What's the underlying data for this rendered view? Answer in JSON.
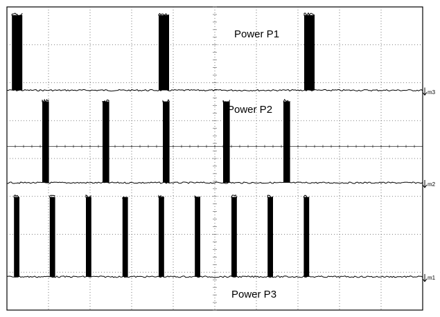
{
  "chart_data": {
    "type": "line",
    "title": "",
    "xlabel": "",
    "ylabel": "",
    "grid": true,
    "grid_divisions": {
      "x": 10,
      "y": 8
    },
    "series": [
      {
        "name": "Power P1",
        "marker": "m3",
        "pulse_starts": [
          0.12,
          3.65,
          7.15
        ],
        "pulse_width": 0.25,
        "amplitude": 1.0
      },
      {
        "name": "Power P2",
        "marker": "m2",
        "pulse_starts": [
          0.85,
          2.3,
          3.75,
          5.2,
          6.65
        ],
        "pulse_width": 0.16,
        "amplitude": 1.0
      },
      {
        "name": "Power P3",
        "marker": "m1",
        "pulse_starts": [
          0.17,
          1.03,
          1.9,
          2.78,
          3.65,
          4.52,
          5.4,
          6.27,
          7.14
        ],
        "pulse_width": 0.13,
        "amplitude": 1.0
      }
    ]
  },
  "colors": {
    "trace": "#000000",
    "grid": "#555555",
    "frame": "#000000",
    "background": "#ffffff"
  }
}
